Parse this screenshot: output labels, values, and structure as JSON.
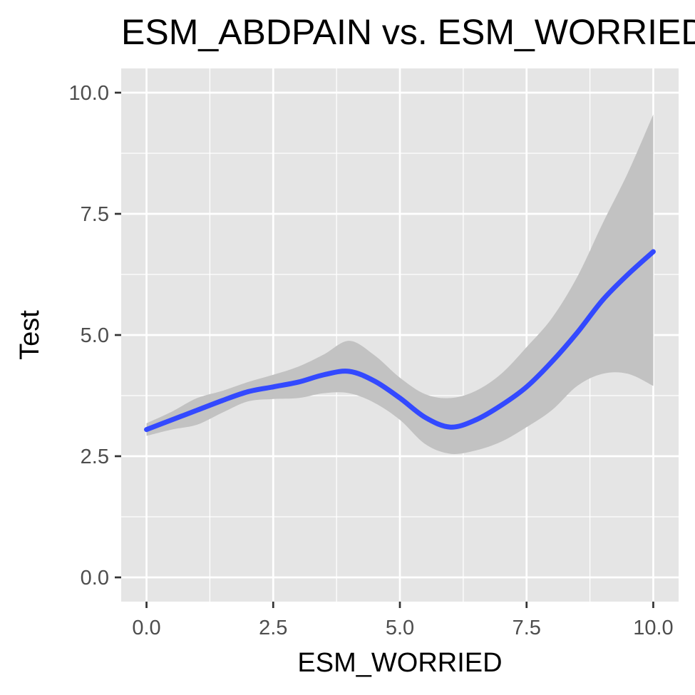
{
  "chart_data": {
    "type": "line",
    "title": "ESM_ABDPAIN vs. ESM_WORRIED",
    "xlabel": "ESM_WORRIED",
    "ylabel": "Test",
    "xlim": [
      -0.5,
      10.5
    ],
    "ylim": [
      -0.5,
      10.5
    ],
    "x_ticks": [
      0,
      2.5,
      5,
      7.5,
      10
    ],
    "x_tick_labels": [
      "0.0",
      "2.5",
      "5.0",
      "7.5",
      "10.0"
    ],
    "y_ticks": [
      0,
      2.5,
      5,
      7.5,
      10
    ],
    "y_tick_labels": [
      "0.0",
      "2.5",
      "5.0",
      "7.5",
      "10.0"
    ],
    "grid": true,
    "legend": "none",
    "colors": {
      "panel_background": "#e5e5e5",
      "grid": "#ffffff",
      "line": "#3349ff",
      "ribbon": "#c2c2c2",
      "tick_mark": "#333333"
    },
    "series": [
      {
        "x": [
          0,
          0.5,
          1,
          1.5,
          2,
          2.5,
          3,
          3.5,
          4,
          4.5,
          5,
          5.5,
          6,
          6.5,
          7,
          7.5,
          8,
          8.5,
          9,
          9.5,
          10
        ],
        "y": [
          3.05,
          3.25,
          3.45,
          3.65,
          3.83,
          3.93,
          4.03,
          4.18,
          4.25,
          4.05,
          3.7,
          3.3,
          3.1,
          3.25,
          3.55,
          3.93,
          4.45,
          5.05,
          5.72,
          6.25,
          6.72
        ],
        "ymin": [
          2.92,
          3.05,
          3.15,
          3.4,
          3.63,
          3.68,
          3.7,
          3.8,
          3.8,
          3.6,
          3.25,
          2.75,
          2.55,
          2.62,
          2.8,
          3.1,
          3.45,
          3.95,
          4.2,
          4.2,
          3.95
        ],
        "ymax": [
          3.18,
          3.42,
          3.7,
          3.85,
          4.03,
          4.18,
          4.35,
          4.6,
          4.88,
          4.58,
          4.12,
          3.78,
          3.7,
          3.85,
          4.2,
          4.75,
          5.35,
          6.2,
          7.3,
          8.35,
          9.55
        ]
      }
    ]
  }
}
